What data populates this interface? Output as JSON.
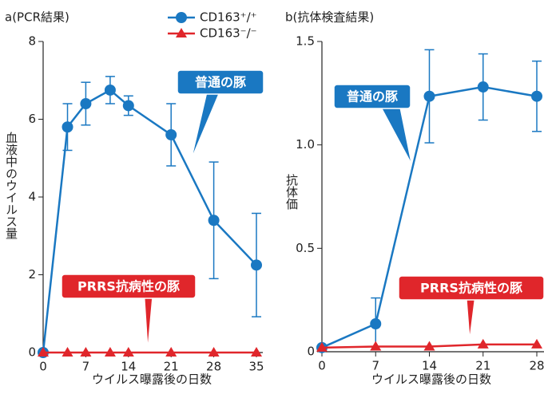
{
  "chart_data": [
    {
      "type": "line",
      "title": "a(PCR結果)",
      "ylabel": "血液中のウイルス量",
      "xlabel": "ウイルス曝露後の日数",
      "x": [
        0,
        4,
        7,
        11,
        14,
        21,
        28,
        35
      ],
      "xlim": [
        0,
        35
      ],
      "xticks": [
        0,
        7,
        14,
        21,
        28,
        35
      ],
      "ylim": [
        0,
        8
      ],
      "yticks": [
        0,
        2,
        4,
        6,
        8
      ],
      "series": [
        {
          "name": "CD163⁺/⁺",
          "color": "#1a78c2",
          "values": [
            0,
            5.8,
            6.4,
            6.75,
            6.35,
            5.6,
            3.4,
            2.25
          ],
          "error": [
            0,
            0.6,
            0.55,
            0.35,
            0.25,
            0.8,
            1.5,
            1.33
          ]
        },
        {
          "name": "CD163⁻/⁻",
          "color": "#e0262b",
          "values": [
            0,
            0,
            0,
            0,
            0,
            0,
            0,
            0
          ]
        }
      ],
      "annotations": [
        {
          "text": "普通の豚",
          "color": "#1a78c2"
        },
        {
          "text": "PRRS抗病性の豚",
          "color": "#e0262b"
        }
      ]
    },
    {
      "type": "line",
      "title": "b(抗体検査結果)",
      "ylabel": "抗体価",
      "xlabel": "ウイルス曝露後の日数",
      "x": [
        0,
        7,
        14,
        21,
        28
      ],
      "xlim": [
        0,
        28
      ],
      "xticks": [
        0,
        7,
        14,
        21,
        28
      ],
      "ylim": [
        0,
        1.5
      ],
      "yticks": [
        0,
        0.5,
        {
          "value": 1,
          "label": "1.0"
        },
        1.5
      ],
      "series": [
        {
          "color": "#1a78c2",
          "values": [
            0.02,
            0.135,
            1.235,
            1.28,
            1.235
          ],
          "error": [
            0,
            0.125,
            0.225,
            0.16,
            0.17
          ]
        },
        {
          "color": "#e0262b",
          "values": [
            0.02,
            0.025,
            0.025,
            0.035,
            0.035
          ]
        }
      ],
      "annotations": [
        {
          "text": "普通の豚",
          "color": "#1a78c2"
        },
        {
          "text": "PRRS抗病性の豚",
          "color": "#e0262b"
        }
      ]
    }
  ]
}
